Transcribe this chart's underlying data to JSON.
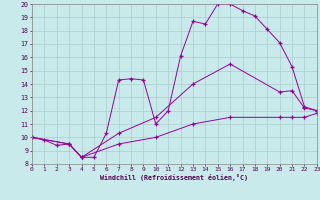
{
  "xlabel": "Windchill (Refroidissement éolien,°C)",
  "bg_color": "#c8eaea",
  "line_color": "#990099",
  "grid_color": "#aacccc",
  "ylim": [
    8,
    20
  ],
  "xlim": [
    0,
    23
  ],
  "yticks": [
    8,
    9,
    10,
    11,
    12,
    13,
    14,
    15,
    16,
    17,
    18,
    19,
    20
  ],
  "xticks": [
    0,
    1,
    2,
    3,
    4,
    5,
    6,
    7,
    8,
    9,
    10,
    11,
    12,
    13,
    14,
    15,
    16,
    17,
    18,
    19,
    20,
    21,
    22,
    23
  ],
  "line1_x": [
    0,
    1,
    2,
    3,
    4,
    5,
    6,
    7,
    8,
    9,
    10,
    11,
    12,
    13,
    14,
    15,
    16,
    17,
    18,
    19,
    20,
    21,
    22,
    23
  ],
  "line1_y": [
    10.0,
    9.8,
    9.4,
    9.5,
    8.5,
    8.5,
    10.3,
    14.3,
    14.4,
    14.3,
    11.0,
    12.0,
    16.1,
    18.7,
    18.5,
    20.0,
    20.0,
    19.5,
    19.1,
    18.1,
    17.1,
    15.3,
    12.3,
    12.0
  ],
  "line2_x": [
    0,
    3,
    4,
    7,
    10,
    13,
    16,
    20,
    21,
    22,
    23
  ],
  "line2_y": [
    10.0,
    9.5,
    8.5,
    10.3,
    11.5,
    14.0,
    15.5,
    13.4,
    13.5,
    12.2,
    12.0
  ],
  "line3_x": [
    0,
    3,
    4,
    7,
    10,
    13,
    16,
    20,
    21,
    22,
    23
  ],
  "line3_y": [
    10.0,
    9.5,
    8.5,
    9.5,
    10.0,
    11.0,
    11.5,
    11.5,
    11.5,
    11.5,
    11.8
  ]
}
